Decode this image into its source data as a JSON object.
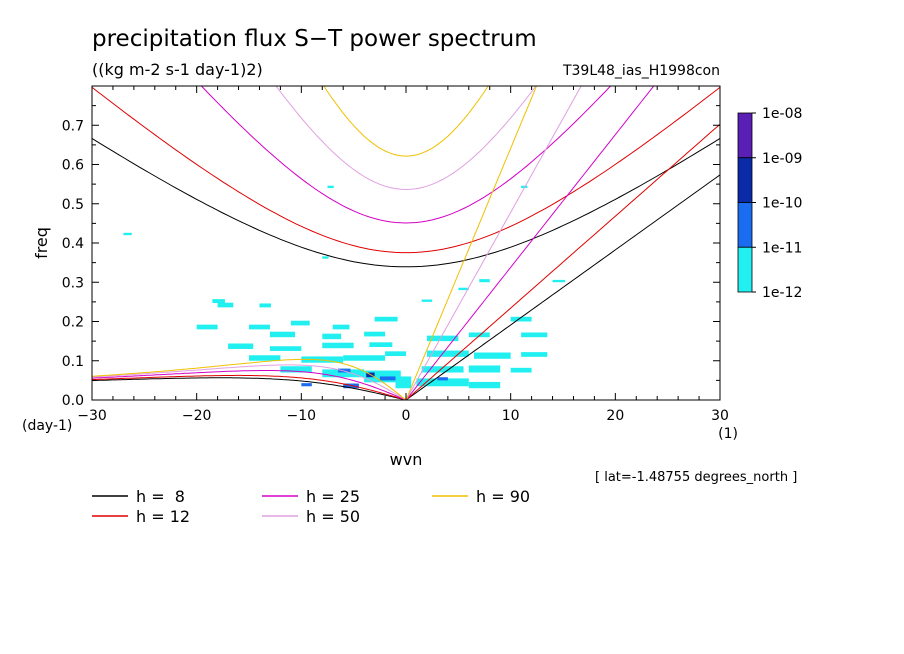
{
  "chart_data": {
    "type": "heatmap",
    "title": "precipitation flux S−T power spectrum",
    "subtitle": "((kg m-2 s-1 day-1)2)",
    "run_label": "T39L48_ias_H1998con",
    "xlabel": "wvn",
    "ylabel": "freq",
    "x_unit": "(1)",
    "y_unit": "(day-1)",
    "xlim": [
      -30,
      30
    ],
    "ylim": [
      0,
      0.8
    ],
    "xticks": [
      -30,
      -20,
      -10,
      0,
      10,
      20,
      30
    ],
    "yticks": [
      0.0,
      0.1,
      0.2,
      0.3,
      0.4,
      0.5,
      0.6,
      0.7
    ],
    "ytick_labels": [
      "0.0",
      "0.1",
      "0.2",
      "0.3",
      "0.4",
      "0.5",
      "0.6",
      "0.7"
    ],
    "latitude_note": "[ lat=-1.48755 degrees_north ]",
    "colorbar": {
      "levels": [
        "1e-08",
        "1e-09",
        "1e-10",
        "1e-11",
        "1e-12"
      ],
      "colors": [
        "#5a1fb4",
        "#0a2aa8",
        "#1a6cf0",
        "#22f0f0"
      ]
    },
    "dispersion_curves": [
      {
        "label": "h =  8",
        "h": 8,
        "color": "#000000"
      },
      {
        "label": "h = 12",
        "h": 12,
        "color": "#e00000"
      },
      {
        "label": "h = 25",
        "h": 25,
        "color": "#d400c8"
      },
      {
        "label": "h = 50",
        "h": 50,
        "color": "#e0a0e0"
      },
      {
        "label": "h = 90",
        "h": 90,
        "color": "#f0c000"
      }
    ],
    "spectrum_patches": [
      {
        "x": -18.5,
        "y": 0.247,
        "w": 1.2,
        "h": 0.01,
        "level": 3
      },
      {
        "x": -18,
        "y": 0.236,
        "w": 1.5,
        "h": 0.012,
        "level": 3
      },
      {
        "x": -14,
        "y": 0.236,
        "w": 1.1,
        "h": 0.01,
        "level": 3
      },
      {
        "x": -20,
        "y": 0.18,
        "w": 2,
        "h": 0.012,
        "level": 3
      },
      {
        "x": -15,
        "y": 0.18,
        "w": 2,
        "h": 0.012,
        "level": 3
      },
      {
        "x": -11,
        "y": 0.19,
        "w": 1.8,
        "h": 0.012,
        "level": 3
      },
      {
        "x": -7,
        "y": 0.18,
        "w": 1.6,
        "h": 0.012,
        "level": 3
      },
      {
        "x": -3,
        "y": 0.2,
        "w": 2.2,
        "h": 0.012,
        "level": 3
      },
      {
        "x": -13,
        "y": 0.16,
        "w": 2.4,
        "h": 0.014,
        "level": 3
      },
      {
        "x": -8,
        "y": 0.155,
        "w": 1.8,
        "h": 0.014,
        "level": 3
      },
      {
        "x": -4,
        "y": 0.162,
        "w": 2,
        "h": 0.012,
        "level": 3
      },
      {
        "x": -17,
        "y": 0.13,
        "w": 2.4,
        "h": 0.014,
        "level": 3
      },
      {
        "x": -13,
        "y": 0.125,
        "w": 3,
        "h": 0.012,
        "level": 3
      },
      {
        "x": -8,
        "y": 0.132,
        "w": 3,
        "h": 0.014,
        "level": 3
      },
      {
        "x": -3.5,
        "y": 0.135,
        "w": 2.2,
        "h": 0.012,
        "level": 3
      },
      {
        "x": -15,
        "y": 0.1,
        "w": 3,
        "h": 0.014,
        "level": 3
      },
      {
        "x": -10,
        "y": 0.095,
        "w": 4,
        "h": 0.016,
        "level": 3
      },
      {
        "x": -6,
        "y": 0.1,
        "w": 4,
        "h": 0.014,
        "level": 3
      },
      {
        "x": -2,
        "y": 0.112,
        "w": 2,
        "h": 0.012,
        "level": 3
      },
      {
        "x": -12,
        "y": 0.07,
        "w": 3,
        "h": 0.016,
        "level": 3
      },
      {
        "x": -8,
        "y": 0.058,
        "w": 4,
        "h": 0.02,
        "level": 3
      },
      {
        "x": -4,
        "y": 0.045,
        "w": 3.5,
        "h": 0.03,
        "level": 3
      },
      {
        "x": -1,
        "y": 0.03,
        "w": 1.5,
        "h": 0.03,
        "level": 3
      },
      {
        "x": -6.5,
        "y": 0.07,
        "w": 1.2,
        "h": 0.01,
        "level": 2
      },
      {
        "x": -3.8,
        "y": 0.058,
        "w": 0.8,
        "h": 0.012,
        "level": 1
      },
      {
        "x": -2.5,
        "y": 0.05,
        "w": 1.5,
        "h": 0.01,
        "level": 2
      },
      {
        "x": -6,
        "y": 0.03,
        "w": 1.5,
        "h": 0.012,
        "level": 2
      },
      {
        "x": -10,
        "y": 0.035,
        "w": 1,
        "h": 0.008,
        "level": 2
      },
      {
        "x": 2,
        "y": 0.15,
        "w": 3,
        "h": 0.014,
        "level": 3
      },
      {
        "x": 6,
        "y": 0.16,
        "w": 2,
        "h": 0.012,
        "level": 3
      },
      {
        "x": 10,
        "y": 0.2,
        "w": 2,
        "h": 0.012,
        "level": 3
      },
      {
        "x": 11,
        "y": 0.16,
        "w": 2.5,
        "h": 0.012,
        "level": 3
      },
      {
        "x": 2,
        "y": 0.11,
        "w": 4,
        "h": 0.016,
        "level": 3
      },
      {
        "x": 6.5,
        "y": 0.105,
        "w": 3.5,
        "h": 0.016,
        "level": 3
      },
      {
        "x": 11,
        "y": 0.11,
        "w": 2.5,
        "h": 0.012,
        "level": 3
      },
      {
        "x": 1.5,
        "y": 0.07,
        "w": 4,
        "h": 0.016,
        "level": 3
      },
      {
        "x": 6,
        "y": 0.07,
        "w": 3,
        "h": 0.018,
        "level": 3
      },
      {
        "x": 10,
        "y": 0.07,
        "w": 2,
        "h": 0.012,
        "level": 3
      },
      {
        "x": 1,
        "y": 0.035,
        "w": 5,
        "h": 0.02,
        "level": 3
      },
      {
        "x": 6,
        "y": 0.03,
        "w": 3,
        "h": 0.016,
        "level": 3
      },
      {
        "x": 3,
        "y": 0.05,
        "w": 1,
        "h": 0.008,
        "level": 2
      },
      {
        "x": 7,
        "y": 0.3,
        "w": 1,
        "h": 0.008,
        "level": 3
      },
      {
        "x": 5,
        "y": 0.28,
        "w": 1,
        "h": 0.006,
        "level": 3
      },
      {
        "x": 1.5,
        "y": 0.25,
        "w": 1,
        "h": 0.006,
        "level": 3
      },
      {
        "x": -8,
        "y": 0.36,
        "w": 0.6,
        "h": 0.006,
        "level": 3
      },
      {
        "x": 11,
        "y": 0.54,
        "w": 0.6,
        "h": 0.006,
        "level": 3
      },
      {
        "x": -7.5,
        "y": 0.54,
        "w": 0.6,
        "h": 0.006,
        "level": 3
      },
      {
        "x": -27,
        "y": 0.42,
        "w": 0.8,
        "h": 0.006,
        "level": 3
      },
      {
        "x": 14,
        "y": 0.3,
        "w": 1.2,
        "h": 0.006,
        "level": 3
      }
    ]
  }
}
